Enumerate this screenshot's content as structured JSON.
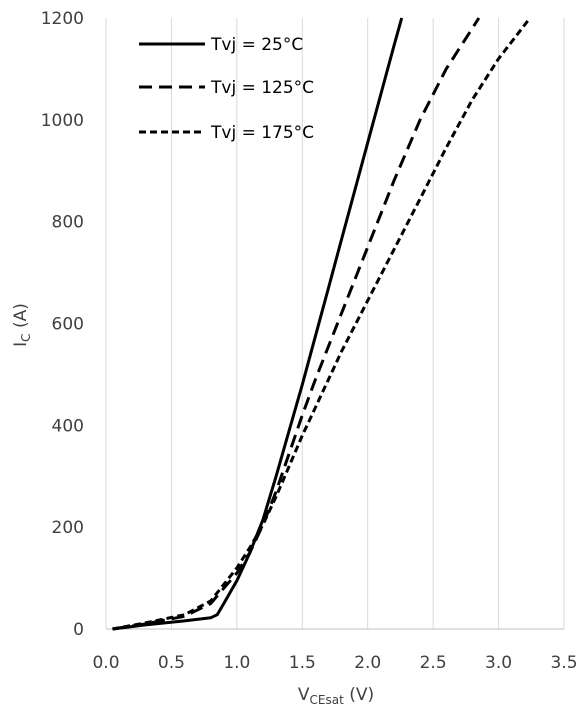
{
  "chart_data": {
    "type": "line",
    "title": "",
    "xlabel": {
      "main": "V",
      "sub": "CEsat",
      "unit": " (V)"
    },
    "ylabel": {
      "main": "I",
      "sub": "C",
      "unit": " (A)"
    },
    "xlim": [
      0,
      3.5
    ],
    "ylim": [
      0,
      1200
    ],
    "xticks": [
      "0.0",
      "0.5",
      "1.0",
      "1.5",
      "2.0",
      "2.5",
      "3.0",
      "3.5"
    ],
    "yticks": [
      "0",
      "200",
      "400",
      "600",
      "800",
      "1000",
      "1200"
    ],
    "grid": {
      "vertical": true,
      "horizontal": false
    },
    "legend_position": "top-left",
    "series": [
      {
        "name": "Tvj = 25°C",
        "dash": "solid",
        "color": "#000000",
        "points": [
          [
            0.05,
            0
          ],
          [
            0.3,
            8
          ],
          [
            0.6,
            16
          ],
          [
            0.8,
            22
          ],
          [
            0.85,
            28
          ],
          [
            0.9,
            50
          ],
          [
            1.0,
            95
          ],
          [
            1.1,
            150
          ],
          [
            1.2,
            215
          ],
          [
            1.3,
            300
          ],
          [
            1.4,
            390
          ],
          [
            1.5,
            480
          ],
          [
            1.6,
            575
          ],
          [
            1.7,
            670
          ],
          [
            1.8,
            765
          ],
          [
            1.9,
            860
          ],
          [
            2.0,
            955
          ],
          [
            2.1,
            1050
          ],
          [
            2.2,
            1145
          ],
          [
            2.26,
            1200
          ]
        ]
      },
      {
        "name": "Tvj = 125°C",
        "dash": "long",
        "color": "#000000",
        "points": [
          [
            0.05,
            0
          ],
          [
            0.3,
            10
          ],
          [
            0.6,
            25
          ],
          [
            0.8,
            50
          ],
          [
            1.0,
            110
          ],
          [
            1.1,
            150
          ],
          [
            1.2,
            205
          ],
          [
            1.3,
            270
          ],
          [
            1.4,
            345
          ],
          [
            1.5,
            420
          ],
          [
            1.6,
            490
          ],
          [
            1.8,
            620
          ],
          [
            2.0,
            750
          ],
          [
            2.2,
            880
          ],
          [
            2.4,
            1000
          ],
          [
            2.6,
            1100
          ],
          [
            2.8,
            1180
          ],
          [
            2.85,
            1200
          ]
        ]
      },
      {
        "name": "Tvj = 175°C",
        "dash": "short",
        "color": "#000000",
        "points": [
          [
            0.05,
            0
          ],
          [
            0.3,
            12
          ],
          [
            0.6,
            28
          ],
          [
            0.8,
            55
          ],
          [
            1.0,
            120
          ],
          [
            1.1,
            160
          ],
          [
            1.2,
            205
          ],
          [
            1.3,
            260
          ],
          [
            1.4,
            320
          ],
          [
            1.5,
            380
          ],
          [
            1.6,
            435
          ],
          [
            1.8,
            545
          ],
          [
            2.0,
            645
          ],
          [
            2.2,
            745
          ],
          [
            2.4,
            845
          ],
          [
            2.6,
            945
          ],
          [
            2.8,
            1040
          ],
          [
            3.0,
            1120
          ],
          [
            3.24,
            1200
          ]
        ]
      }
    ]
  }
}
